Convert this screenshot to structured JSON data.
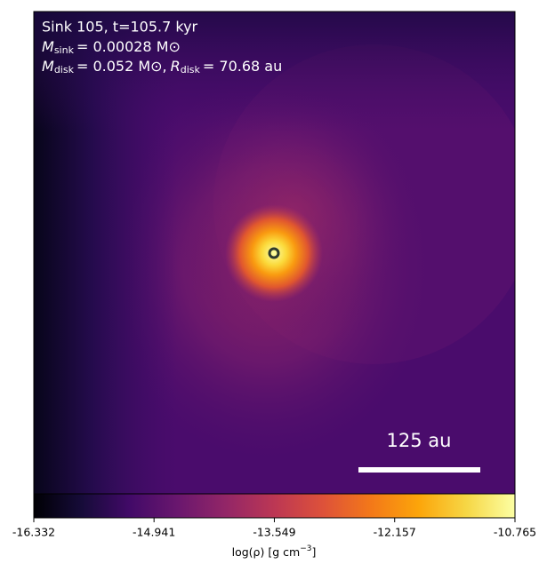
{
  "chart_data": {
    "type": "heatmap",
    "title": "Sink 105, t=105.7 kyr",
    "annotations": [
      {
        "symbol": "M",
        "subscript": "sink",
        "text": "= 0.00028 M⊙"
      },
      {
        "symbol": "M",
        "subscript": "disk",
        "text": "= 0.052 M⊙,"
      },
      {
        "symbol": "R",
        "subscript": "disk",
        "text": "= 70.68 au"
      }
    ],
    "scale_bar_label": "125 au",
    "colormap": "inferno",
    "clim": [
      -16.332,
      -10.765
    ],
    "cticks": [
      -16.332,
      -14.941,
      -13.549,
      -12.157,
      -10.765
    ],
    "colorbar_label": {
      "text": "log(ρ) [g cm",
      "superscript": "−3",
      "close": "]"
    }
  }
}
